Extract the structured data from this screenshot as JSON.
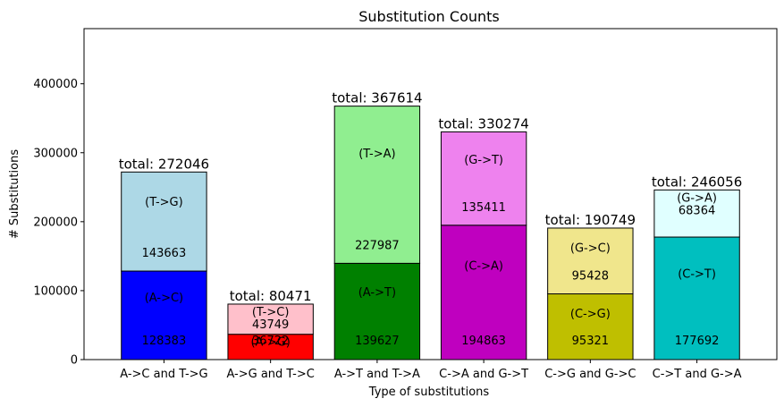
{
  "chart_data": {
    "type": "bar",
    "stacked": true,
    "title": "Substitution Counts",
    "xlabel": "Type of substitutions",
    "ylabel": "# Substitutions",
    "ylim": [
      0,
      480000
    ],
    "yticks": [
      0,
      100000,
      200000,
      300000,
      400000
    ],
    "ytick_labels": [
      "0",
      "100000",
      "200000",
      "300000",
      "400000"
    ],
    "grid": false,
    "categories": [
      "A->C and T->G",
      "A->G and T->C",
      "A->T and T->A",
      "C->A and G->T",
      "C->G and G->C",
      "C->T and G->A"
    ],
    "totals": [
      {
        "value": 272046,
        "label": "total: 272046"
      },
      {
        "value": 80471,
        "label": "total: 80471"
      },
      {
        "value": 367614,
        "label": "total: 367614"
      },
      {
        "value": 330274,
        "label": "total: 330274"
      },
      {
        "value": 190749,
        "label": "total: 190749"
      },
      {
        "value": 246056,
        "label": "total: 246056"
      }
    ],
    "bottom": [
      {
        "name": "(A->C)",
        "value": 128383,
        "value_label": "128383",
        "color": "#0000ff"
      },
      {
        "name": "(A->G)",
        "value": 36722,
        "value_label": "36722",
        "color": "#ff0000"
      },
      {
        "name": "(A->T)",
        "value": 139627,
        "value_label": "139627",
        "color": "#008000"
      },
      {
        "name": "(C->A)",
        "value": 194863,
        "value_label": "194863",
        "color": "#bf00bf"
      },
      {
        "name": "(C->G)",
        "value": 95321,
        "value_label": "95321",
        "color": "#bfbf00"
      },
      {
        "name": "(C->T)",
        "value": 177692,
        "value_label": "177692",
        "color": "#00bfbf"
      }
    ],
    "top": [
      {
        "name": "(T->G)",
        "value": 143663,
        "value_label": "143663",
        "color": "#add8e6"
      },
      {
        "name": "(T->C)",
        "value": 43749,
        "value_label": "43749",
        "color": "#ffc0cb"
      },
      {
        "name": "(T->A)",
        "value": 227987,
        "value_label": "227987",
        "color": "#90ee90"
      },
      {
        "name": "(G->T)",
        "value": 135411,
        "value_label": "135411",
        "color": "#ee82ee"
      },
      {
        "name": "(G->C)",
        "value": 95428,
        "value_label": "95428",
        "color": "#f0e68c"
      },
      {
        "name": "(G->A)",
        "value": 68364,
        "value_label": "68364",
        "color": "#e0ffff"
      }
    ]
  }
}
